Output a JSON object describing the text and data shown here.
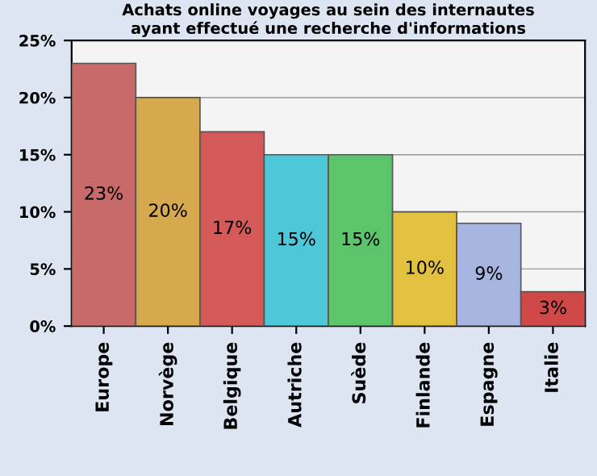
{
  "chart_data": {
    "type": "bar",
    "title": "Achats online voyages au sein des internautes\nayant effectué une recherche d'informations",
    "categories": [
      "Europe",
      "Norvège",
      "Belgique",
      "Autriche",
      "Suède",
      "Finlande",
      "Espagne",
      "Italie"
    ],
    "values": [
      23,
      20,
      17,
      15,
      15,
      10,
      9,
      3
    ],
    "value_labels": [
      "23%",
      "20%",
      "17%",
      "15%",
      "15%",
      "10%",
      "9%",
      "3%"
    ],
    "colors": [
      "#c86a6a",
      "#d6a94e",
      "#d45a5a",
      "#4ec8d8",
      "#5cc46a",
      "#e2c040",
      "#a8b4e0",
      "#d04848"
    ],
    "ylim": [
      0,
      25
    ],
    "yticks": [
      {
        "value": 0,
        "label": "0%"
      },
      {
        "value": 5,
        "label": "5%"
      },
      {
        "value": 10,
        "label": "10%"
      },
      {
        "value": 15,
        "label": "15%"
      },
      {
        "value": 20,
        "label": "20%"
      },
      {
        "value": 25,
        "label": "25%"
      }
    ],
    "grid": "y"
  }
}
